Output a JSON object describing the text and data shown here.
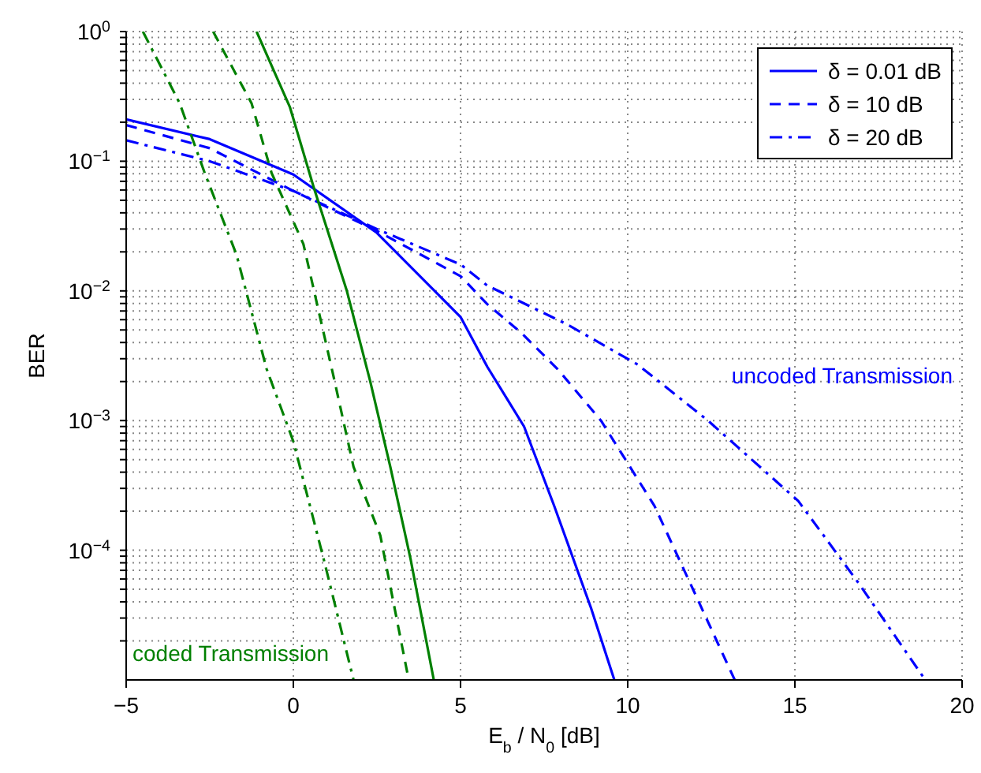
{
  "chart_data": {
    "type": "line",
    "xlabel": "E$_{b}$ / N$_{0}$ [dB]",
    "ylabel": "BER",
    "log": "y",
    "grid": true,
    "legend": "top right",
    "xlim": [
      -5,
      20
    ],
    "xticks": [
      {
        "value": -5,
        "label": "−5"
      },
      0,
      5,
      10,
      15,
      20
    ],
    "ylim": [
      1e-05,
      1
    ],
    "yticks": [
      {
        "value": 1,
        "label": "10$^{0}$"
      },
      {
        "value": 0.1,
        "label": "10$^{−1}$"
      },
      {
        "value": 0.01,
        "label": "10$^{−2}$"
      },
      {
        "value": 0.001,
        "label": "10$^{−3}$"
      },
      {
        "value": 0.0001,
        "label": "10$^{−4}$"
      },
      {
        "value": 2e-05,
        "label": null
      },
      {
        "value": 3e-05,
        "label": null
      },
      {
        "value": 4e-05,
        "label": null
      },
      {
        "value": 5e-05,
        "label": null
      },
      {
        "value": 6e-05,
        "label": null
      },
      {
        "value": 7e-05,
        "label": null
      },
      {
        "value": 8e-05,
        "label": null
      },
      {
        "value": 9e-05,
        "label": null
      },
      {
        "value": 0.0002,
        "label": null
      },
      {
        "value": 0.0003,
        "label": null
      },
      {
        "value": 0.0004,
        "label": null
      },
      {
        "value": 0.0005,
        "label": null
      },
      {
        "value": 0.0006,
        "label": null
      },
      {
        "value": 0.0007,
        "label": null
      },
      {
        "value": 0.0008,
        "label": null
      },
      {
        "value": 0.0009,
        "label": null
      },
      {
        "value": 0.002,
        "label": null
      },
      {
        "value": 0.003,
        "label": null
      },
      {
        "value": 0.004,
        "label": null
      },
      {
        "value": 0.005,
        "label": null
      },
      {
        "value": 0.006,
        "label": null
      },
      {
        "value": 0.007,
        "label": null
      },
      {
        "value": 0.008,
        "label": null
      },
      {
        "value": 0.009,
        "label": null
      },
      {
        "value": 0.02,
        "label": null
      },
      {
        "value": 0.03,
        "label": null
      },
      {
        "value": 0.04,
        "label": null
      },
      {
        "value": 0.05,
        "label": null
      },
      {
        "value": 0.06,
        "label": null
      },
      {
        "value": 0.07,
        "label": null
      },
      {
        "value": 0.08,
        "label": null
      },
      {
        "value": 0.09,
        "label": null
      },
      {
        "value": 0.2,
        "label": null
      },
      {
        "value": 0.3,
        "label": null
      },
      {
        "value": 0.4,
        "label": null
      },
      {
        "value": 0.5,
        "label": null
      },
      {
        "value": 0.6,
        "label": null
      },
      {
        "value": 0.7,
        "label": null
      },
      {
        "value": 0.8,
        "label": null
      },
      {
        "value": 0.9,
        "label": null
      }
    ],
    "series": [
      {
        "name": "δ = 0.01 dB",
        "color": "#0000ff",
        "line_style": "solid",
        "x": [
          -5,
          -2.5,
          0,
          2.5,
          5,
          5.8,
          6.9,
          7.8,
          8.9,
          9.6
        ],
        "values": [
          0.21,
          0.148,
          0.079,
          0.028,
          0.0063,
          0.0026,
          0.0009,
          0.00022,
          3.6e-05,
          1e-05
        ]
      },
      {
        "name": "δ = 10 dB",
        "color": "#0000ff",
        "line_style": "dashed",
        "x": [
          -5,
          -2.5,
          0,
          2.5,
          5,
          5.8,
          6.8,
          7.9,
          9.2,
          10.8,
          12,
          13.2
        ],
        "values": [
          0.19,
          0.126,
          0.059,
          0.029,
          0.013,
          0.0079,
          0.0048,
          0.0025,
          0.001,
          0.00022,
          4.7e-05,
          1e-05
        ]
      },
      {
        "name": "δ = 20 dB",
        "color": "#0000ff",
        "line_style": "dashdot",
        "x": [
          -5,
          -2.5,
          0,
          2.5,
          5,
          5.8,
          8.2,
          10.3,
          12.4,
          15.1,
          16.9,
          18.9
        ],
        "values": [
          0.145,
          0.1,
          0.059,
          0.03,
          0.016,
          0.011,
          0.0055,
          0.0027,
          0.001,
          0.00024,
          5.6e-05,
          1e-05
        ]
      },
      {
        "color": "#008000",
        "line_style": "solid",
        "x": [
          -1.1,
          -0.1,
          0.6,
          1.6,
          2.3,
          2.9,
          3.5,
          4.2
        ],
        "values": [
          1,
          0.26,
          0.064,
          0.01,
          0.002,
          0.00044,
          8.7e-05,
          1e-05
        ]
      },
      {
        "color": "#008000",
        "line_style": "dashed",
        "x": [
          -2.4,
          -1.25,
          -0.65,
          0.3,
          1.2,
          1.8,
          2.6,
          3.45
        ],
        "values": [
          1,
          0.28,
          0.081,
          0.023,
          0.0022,
          0.00044,
          0.00013,
          1e-05
        ]
      },
      {
        "color": "#008000",
        "line_style": "dashdot",
        "x": [
          -4.5,
          -3.4,
          -2.65,
          -1.7,
          -0.8,
          0,
          0.9,
          1.8
        ],
        "values": [
          1,
          0.28,
          0.081,
          0.019,
          0.0025,
          0.00069,
          8.7e-05,
          1e-05
        ]
      }
    ],
    "annotations": [
      "uncoded Transmission",
      "coded Transmission"
    ]
  }
}
